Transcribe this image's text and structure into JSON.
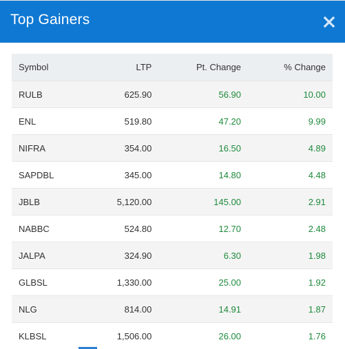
{
  "modal": {
    "title": "Top Gainers",
    "close_icon": "close-icon",
    "header_color": "#0f78d2",
    "gain_color": "#1e8a3c"
  },
  "table": {
    "columns": [
      "Symbol",
      "LTP",
      "Pt. Change",
      "% Change"
    ],
    "rows": [
      {
        "symbol": "RULB",
        "ltp": "625.90",
        "pt_change": "56.90",
        "pct_change": "10.00"
      },
      {
        "symbol": "ENL",
        "ltp": "519.80",
        "pt_change": "47.20",
        "pct_change": "9.99"
      },
      {
        "symbol": "NIFRA",
        "ltp": "354.00",
        "pt_change": "16.50",
        "pct_change": "4.89"
      },
      {
        "symbol": "SAPDBL",
        "ltp": "345.00",
        "pt_change": "14.80",
        "pct_change": "4.48"
      },
      {
        "symbol": "JBLB",
        "ltp": "5,120.00",
        "pt_change": "145.00",
        "pct_change": "2.91"
      },
      {
        "symbol": "NABBC",
        "ltp": "524.80",
        "pt_change": "12.70",
        "pct_change": "2.48"
      },
      {
        "symbol": "JALPA",
        "ltp": "324.90",
        "pt_change": "6.30",
        "pct_change": "1.98"
      },
      {
        "symbol": "GLBSL",
        "ltp": "1,330.00",
        "pt_change": "25.00",
        "pct_change": "1.92"
      },
      {
        "symbol": "NLG",
        "ltp": "814.00",
        "pt_change": "14.91",
        "pct_change": "1.87"
      },
      {
        "symbol": "KLBSL",
        "ltp": "1,506.00",
        "pt_change": "26.00",
        "pct_change": "1.76"
      }
    ]
  }
}
